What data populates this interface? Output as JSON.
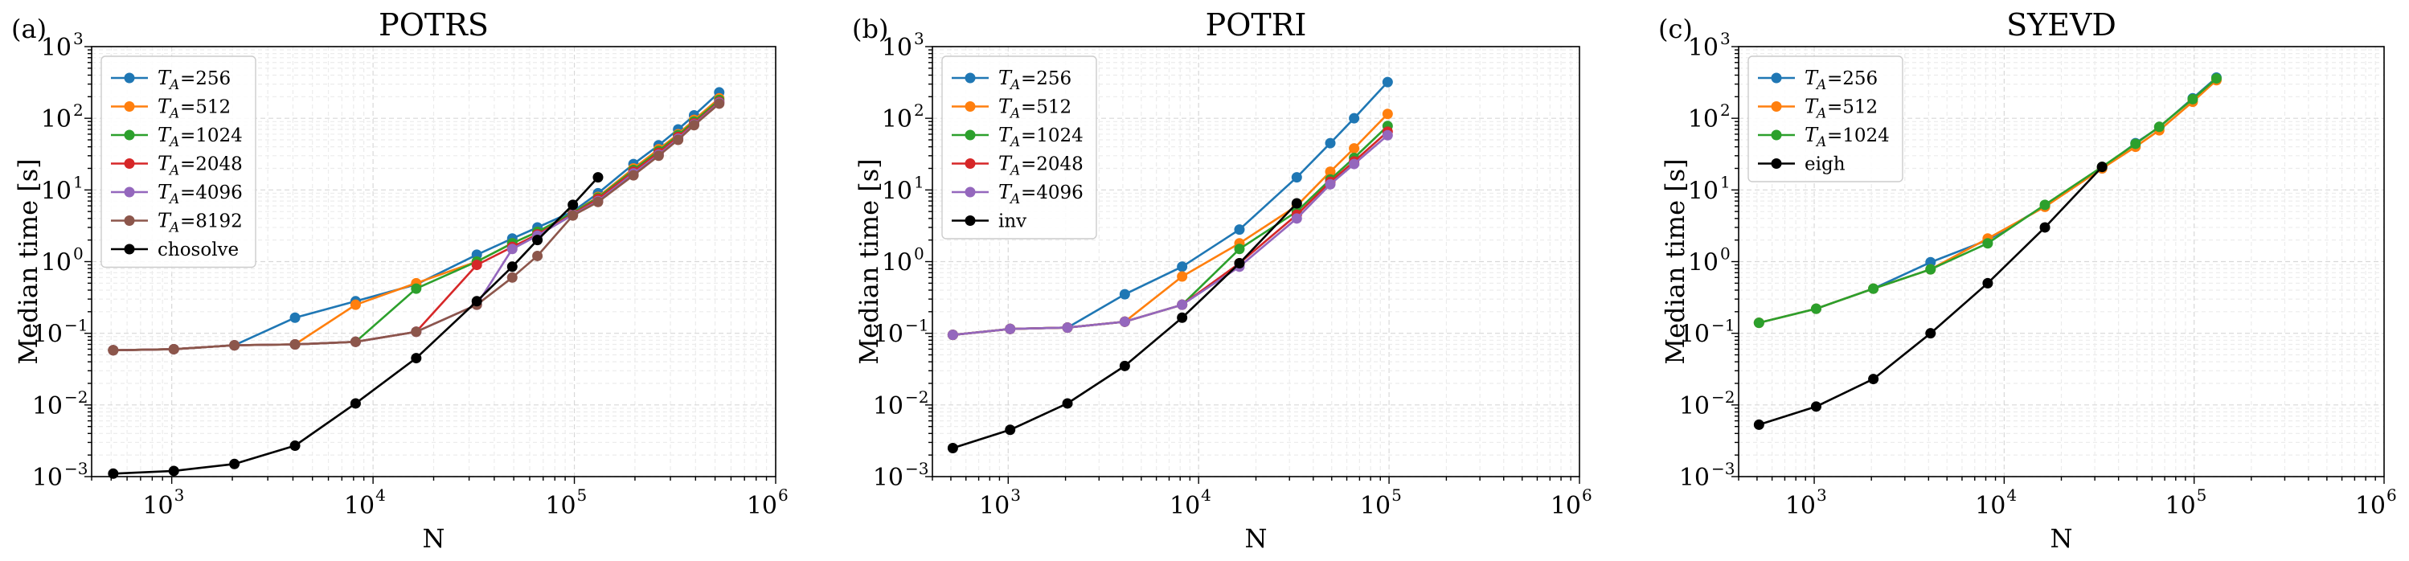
{
  "chart_data": [
    {
      "panel": "(a)",
      "title": "POTRS",
      "type": "line",
      "xscale": "log",
      "yscale": "log",
      "xlabel": "N",
      "ylabel": "Median time [s]",
      "xlim": [
        400,
        1000000
      ],
      "ylim": [
        0.001,
        1000
      ],
      "xticks": [
        {
          "v": 1000,
          "base": "10",
          "exp": "3"
        },
        {
          "v": 10000,
          "base": "10",
          "exp": "4"
        },
        {
          "v": 100000,
          "base": "10",
          "exp": "5"
        },
        {
          "v": 1000000,
          "base": "10",
          "exp": "6"
        }
      ],
      "yticks": [
        {
          "v": 0.001,
          "base": "10",
          "exp": "−3"
        },
        {
          "v": 0.01,
          "base": "10",
          "exp": "−2"
        },
        {
          "v": 0.1,
          "base": "10",
          "exp": "−1"
        },
        {
          "v": 1,
          "base": "10",
          "exp": "0"
        },
        {
          "v": 10,
          "base": "10",
          "exp": "1"
        },
        {
          "v": 100,
          "base": "10",
          "exp": "2"
        },
        {
          "v": 1000,
          "base": "10",
          "exp": "3"
        }
      ],
      "grid": true,
      "legend_position": "upper-left",
      "series": [
        {
          "name": "T_A =256",
          "lsym": "T",
          "lsub": "A",
          "lval": " =256",
          "color": "#1f77b4",
          "x": [
            512,
            1024,
            2048,
            4096,
            8192,
            16384,
            32768,
            49152,
            65536,
            98304,
            131072,
            196608,
            262144,
            327680,
            393216,
            524288
          ],
          "y": [
            0.058,
            0.06,
            0.068,
            0.165,
            0.28,
            0.48,
            1.25,
            2.1,
            3.0,
            5.0,
            9.0,
            23,
            42,
            70,
            110,
            230
          ]
        },
        {
          "name": "T_A =512",
          "lsym": "T",
          "lsub": "A",
          "lval": " =512",
          "color": "#ff7f0e",
          "x": [
            512,
            1024,
            2048,
            4096,
            8192,
            16384,
            32768,
            49152,
            65536,
            98304,
            131072,
            196608,
            262144,
            327680,
            393216,
            524288
          ],
          "y": [
            0.058,
            0.06,
            0.068,
            0.07,
            0.25,
            0.5,
            1.0,
            1.8,
            2.6,
            4.8,
            8.0,
            20,
            37,
            60,
            95,
            190
          ]
        },
        {
          "name": "T_A =1024",
          "lsym": "T",
          "lsub": "A",
          "lval": " =1024",
          "color": "#2ca02c",
          "x": [
            512,
            1024,
            2048,
            4096,
            8192,
            16384,
            32768,
            49152,
            65536,
            98304,
            131072,
            196608,
            262144,
            327680,
            393216,
            524288
          ],
          "y": [
            0.058,
            0.06,
            0.068,
            0.07,
            0.076,
            0.42,
            1.0,
            1.8,
            2.6,
            4.8,
            7.8,
            19,
            35,
            58,
            90,
            180
          ]
        },
        {
          "name": "T_A =2048",
          "lsym": "T",
          "lsub": "A",
          "lval": " =2048",
          "color": "#d62728",
          "x": [
            512,
            1024,
            2048,
            4096,
            8192,
            16384,
            32768,
            49152,
            65536,
            98304,
            131072,
            196608,
            262144,
            327680,
            393216,
            524288
          ],
          "y": [
            0.058,
            0.06,
            0.068,
            0.07,
            0.076,
            0.105,
            0.9,
            1.6,
            2.4,
            4.6,
            7.5,
            18,
            33,
            55,
            85,
            170
          ]
        },
        {
          "name": "T_A =4096",
          "lsym": "T",
          "lsub": "A",
          "lval": " =4096",
          "color": "#9467bd",
          "x": [
            512,
            1024,
            2048,
            4096,
            8192,
            16384,
            32768,
            49152,
            65536,
            98304,
            131072,
            196608,
            262144,
            327680,
            393216,
            524288
          ],
          "y": [
            0.058,
            0.06,
            0.068,
            0.07,
            0.076,
            0.105,
            0.25,
            1.5,
            2.3,
            4.5,
            7.0,
            17,
            31,
            52,
            82,
            165
          ]
        },
        {
          "name": "T_A =8192",
          "lsym": "T",
          "lsub": "A",
          "lval": " =8192",
          "color": "#8c564b",
          "x": [
            512,
            1024,
            2048,
            4096,
            8192,
            16384,
            32768,
            49152,
            65536,
            98304,
            131072,
            196608,
            262144,
            327680,
            393216,
            524288
          ],
          "y": [
            0.058,
            0.06,
            0.068,
            0.07,
            0.076,
            0.105,
            0.25,
            0.6,
            1.2,
            4.4,
            6.8,
            16,
            30,
            50,
            80,
            160
          ]
        },
        {
          "name": "chosolve",
          "lsym": "",
          "lsub": "",
          "lval": "chosolve",
          "color": "#000000",
          "x": [
            512,
            1024,
            2048,
            4096,
            8192,
            16384,
            32768,
            49152,
            65536,
            98304,
            131072
          ],
          "y": [
            0.0011,
            0.0012,
            0.0015,
            0.0027,
            0.0105,
            0.045,
            0.28,
            0.85,
            2.0,
            6.2,
            15
          ]
        }
      ]
    },
    {
      "panel": "(b)",
      "title": "POTRI",
      "type": "line",
      "xscale": "log",
      "yscale": "log",
      "xlabel": "N",
      "ylabel": "Median time [s]",
      "xlim": [
        400,
        1000000
      ],
      "ylim": [
        0.001,
        1000
      ],
      "xticks": [
        {
          "v": 1000,
          "base": "10",
          "exp": "3"
        },
        {
          "v": 10000,
          "base": "10",
          "exp": "4"
        },
        {
          "v": 100000,
          "base": "10",
          "exp": "5"
        },
        {
          "v": 1000000,
          "base": "10",
          "exp": "6"
        }
      ],
      "yticks": [
        {
          "v": 0.001,
          "base": "10",
          "exp": "−3"
        },
        {
          "v": 0.01,
          "base": "10",
          "exp": "−2"
        },
        {
          "v": 0.1,
          "base": "10",
          "exp": "−1"
        },
        {
          "v": 1,
          "base": "10",
          "exp": "0"
        },
        {
          "v": 10,
          "base": "10",
          "exp": "1"
        },
        {
          "v": 100,
          "base": "10",
          "exp": "2"
        },
        {
          "v": 1000,
          "base": "10",
          "exp": "3"
        }
      ],
      "grid": true,
      "legend_position": "upper-left",
      "series": [
        {
          "name": "T_A =256",
          "lsym": "T",
          "lsub": "A",
          "lval": " =256",
          "color": "#1f77b4",
          "x": [
            512,
            1024,
            2048,
            4096,
            8192,
            16384,
            32768,
            49152,
            65536,
            98304
          ],
          "y": [
            0.095,
            0.115,
            0.12,
            0.35,
            0.85,
            2.8,
            15,
            45,
            100,
            320
          ]
        },
        {
          "name": "T_A =512",
          "lsym": "T",
          "lsub": "A",
          "lval": " =512",
          "color": "#ff7f0e",
          "x": [
            512,
            1024,
            2048,
            4096,
            8192,
            16384,
            32768,
            49152,
            65536,
            98304
          ],
          "y": [
            0.095,
            0.115,
            0.12,
            0.145,
            0.62,
            1.8,
            6.0,
            18,
            38,
            115
          ]
        },
        {
          "name": "T_A =1024",
          "lsym": "T",
          "lsub": "A",
          "lval": " =1024",
          "color": "#2ca02c",
          "x": [
            512,
            1024,
            2048,
            4096,
            8192,
            16384,
            32768,
            49152,
            65536,
            98304
          ],
          "y": [
            0.095,
            0.115,
            0.12,
            0.145,
            0.25,
            1.5,
            5.0,
            14,
            28,
            78
          ]
        },
        {
          "name": "T_A =2048",
          "lsym": "T",
          "lsub": "A",
          "lval": " =2048",
          "color": "#d62728",
          "x": [
            512,
            1024,
            2048,
            4096,
            8192,
            16384,
            32768,
            49152,
            65536,
            98304
          ],
          "y": [
            0.095,
            0.115,
            0.12,
            0.145,
            0.25,
            0.95,
            4.5,
            13,
            25,
            65
          ]
        },
        {
          "name": "T_A =4096",
          "lsym": "T",
          "lsub": "A",
          "lval": " =4096",
          "color": "#9467bd",
          "x": [
            512,
            1024,
            2048,
            4096,
            8192,
            16384,
            32768,
            49152,
            65536,
            98304
          ],
          "y": [
            0.095,
            0.115,
            0.12,
            0.145,
            0.25,
            0.85,
            4.0,
            12,
            23,
            58
          ]
        },
        {
          "name": "inv",
          "lsym": "",
          "lsub": "",
          "lval": "inv",
          "color": "#000000",
          "x": [
            512,
            1024,
            2048,
            4096,
            8192,
            16384,
            32768
          ],
          "y": [
            0.0025,
            0.0045,
            0.0105,
            0.035,
            0.165,
            0.95,
            6.5
          ]
        }
      ]
    },
    {
      "panel": "(c)",
      "title": "SYEVD",
      "type": "line",
      "xscale": "log",
      "yscale": "log",
      "xlabel": "N",
      "ylabel": "Median time [s]",
      "xlim": [
        400,
        1000000
      ],
      "ylim": [
        0.001,
        1000
      ],
      "xticks": [
        {
          "v": 1000,
          "base": "10",
          "exp": "3"
        },
        {
          "v": 10000,
          "base": "10",
          "exp": "4"
        },
        {
          "v": 100000,
          "base": "10",
          "exp": "5"
        },
        {
          "v": 1000000,
          "base": "10",
          "exp": "6"
        }
      ],
      "yticks": [
        {
          "v": 0.001,
          "base": "10",
          "exp": "−3"
        },
        {
          "v": 0.01,
          "base": "10",
          "exp": "−2"
        },
        {
          "v": 0.1,
          "base": "10",
          "exp": "−1"
        },
        {
          "v": 1,
          "base": "10",
          "exp": "0"
        },
        {
          "v": 10,
          "base": "10",
          "exp": "1"
        },
        {
          "v": 100,
          "base": "10",
          "exp": "2"
        },
        {
          "v": 1000,
          "base": "10",
          "exp": "3"
        }
      ],
      "grid": true,
      "legend_position": "upper-left",
      "series": [
        {
          "name": "T_A =256",
          "lsym": "T",
          "lsub": "A",
          "lval": " =256",
          "color": "#1f77b4",
          "x": [
            512,
            1024,
            2048,
            4096,
            8192,
            16384,
            32768,
            49152,
            65536,
            98304,
            131072
          ],
          "y": [
            0.14,
            0.22,
            0.42,
            0.98,
            2.0,
            6.0,
            20,
            45,
            75,
            190,
            370
          ]
        },
        {
          "name": "T_A =512",
          "lsym": "T",
          "lsub": "A",
          "lval": " =512",
          "color": "#ff7f0e",
          "x": [
            512,
            1024,
            2048,
            4096,
            8192,
            16384,
            32768,
            49152,
            65536,
            98304,
            131072
          ],
          "y": [
            0.14,
            0.22,
            0.42,
            0.78,
            2.1,
            5.8,
            20,
            40,
            68,
            170,
            340
          ]
        },
        {
          "name": "T_A =1024",
          "lsym": "T",
          "lsub": "A",
          "lval": " =1024",
          "color": "#2ca02c",
          "x": [
            512,
            1024,
            2048,
            4096,
            8192,
            16384,
            32768,
            49152,
            65536,
            98304,
            131072
          ],
          "y": [
            0.14,
            0.22,
            0.42,
            0.78,
            1.8,
            6.2,
            21,
            44,
            76,
            185,
            360
          ]
        },
        {
          "name": "eigh",
          "lsym": "",
          "lsub": "",
          "lval": "eigh",
          "color": "#000000",
          "x": [
            512,
            1024,
            2048,
            4096,
            8192,
            16384,
            32768
          ],
          "y": [
            0.0053,
            0.0095,
            0.023,
            0.1,
            0.5,
            3.0,
            21
          ]
        }
      ]
    }
  ]
}
